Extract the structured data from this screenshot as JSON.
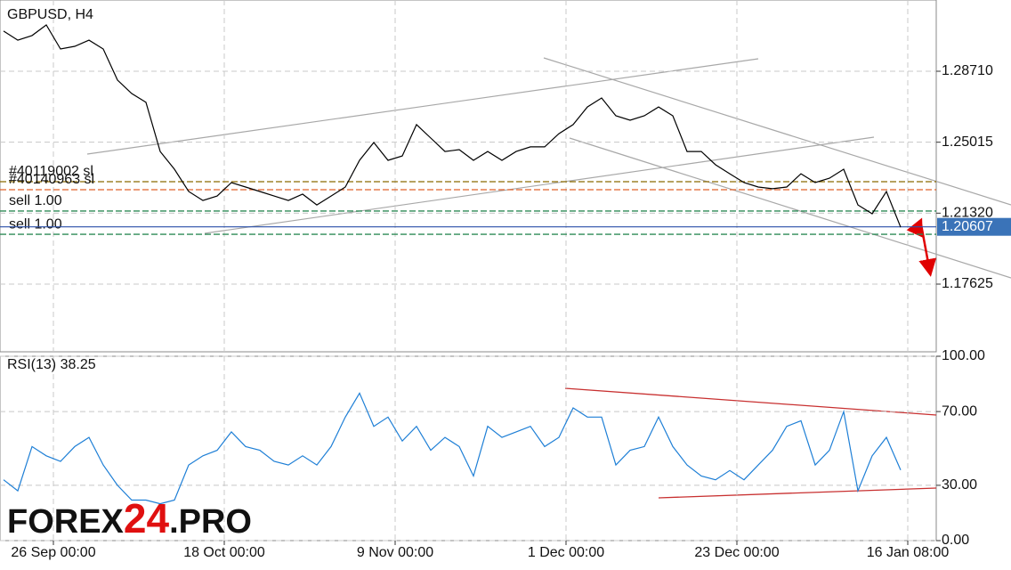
{
  "chart_data": [
    {
      "type": "line",
      "title": "GBPUSD, H4",
      "x": [
        0,
        1,
        2,
        3,
        4,
        5,
        6,
        7,
        8,
        9,
        10,
        11,
        12,
        13,
        14,
        15,
        16,
        17,
        18,
        19,
        20,
        21,
        22,
        23,
        24,
        25,
        26,
        27,
        28,
        29,
        30,
        31,
        32,
        33,
        34,
        35,
        36,
        37,
        38,
        39,
        40,
        41,
        42,
        43,
        44,
        45,
        46,
        47,
        48,
        49,
        50,
        51,
        52,
        53,
        54,
        55,
        56,
        57,
        58,
        59,
        60,
        61,
        62,
        63
      ],
      "values": [
        1.308,
        1.3033,
        1.3057,
        1.3112,
        1.2987,
        1.3001,
        1.3033,
        1.2987,
        1.2825,
        1.2755,
        1.2709,
        1.2453,
        1.2361,
        1.2245,
        1.2198,
        1.2221,
        1.2291,
        1.2268,
        1.2245,
        1.2221,
        1.2198,
        1.2231,
        1.2175,
        1.2221,
        1.2268,
        1.2407,
        1.25,
        1.2407,
        1.243,
        1.2593,
        1.2523,
        1.2453,
        1.2463,
        1.2407,
        1.2453,
        1.2407,
        1.2453,
        1.2477,
        1.2477,
        1.2546,
        1.2593,
        1.2685,
        1.2732,
        1.2639,
        1.2616,
        1.2639,
        1.2685,
        1.2639,
        1.2453,
        1.2453,
        1.2384,
        1.2337,
        1.2291,
        1.2268,
        1.2259,
        1.2268,
        1.2337,
        1.2291,
        1.2314,
        1.2361,
        1.2175,
        1.2129,
        1.2245,
        1.2059
      ],
      "color": "#000000",
      "xlim": [
        0,
        65.5
      ],
      "ylim": [
        1.141,
        1.3242
      ],
      "yticks": [
        {
          "value": 1.2871,
          "label": "1.28710"
        },
        {
          "value": 1.25015,
          "label": "1.25015"
        },
        {
          "value": 1.2132,
          "label": "1.21320"
        },
        {
          "value": 1.17625,
          "label": "1.17625"
        }
      ],
      "grid": true,
      "last_price": 1.20607,
      "levels": [
        {
          "label": "#40119002 sl",
          "value": 1.2296,
          "color": "#8b6a00"
        },
        {
          "label": "#40140963 sl",
          "value": 1.2254,
          "color": "#e0602a"
        },
        {
          "label": "sell 1.00",
          "value": 1.2143,
          "color": "#2e8b57"
        },
        {
          "label": "sell 1.00",
          "value": 1.2022,
          "color": "#2e8b57"
        }
      ]
    },
    {
      "type": "line",
      "title": "RSI(13) 38.25",
      "x": [
        0,
        1,
        2,
        3,
        4,
        5,
        6,
        7,
        8,
        9,
        10,
        11,
        12,
        13,
        14,
        15,
        16,
        17,
        18,
        19,
        20,
        21,
        22,
        23,
        24,
        25,
        26,
        27,
        28,
        29,
        30,
        31,
        32,
        33,
        34,
        35,
        36,
        37,
        38,
        39,
        40,
        41,
        42,
        43,
        44,
        45,
        46,
        47,
        48,
        49,
        50,
        51,
        52,
        53,
        54,
        55,
        56,
        57,
        58,
        59,
        60,
        61,
        62,
        63
      ],
      "values": [
        33,
        27,
        51,
        46,
        43,
        51,
        56,
        41,
        30,
        22,
        22,
        20,
        22,
        41,
        46,
        49,
        59,
        51,
        49,
        43,
        41,
        46,
        41,
        51,
        67,
        80,
        62,
        67,
        54,
        62,
        49,
        56,
        51,
        35,
        62,
        56,
        59,
        62,
        51,
        56,
        72,
        67,
        67,
        41,
        49,
        51,
        67,
        51,
        41,
        35,
        33,
        38,
        33,
        41,
        49,
        62,
        65,
        41,
        49,
        70,
        27,
        46,
        56,
        38.25
      ],
      "color": "#1e7fd6",
      "xlim": [
        0,
        65.5
      ],
      "ylim": [
        0,
        100
      ],
      "yticks": [
        {
          "value": 100,
          "label": "100.00"
        },
        {
          "value": 70,
          "label": "70.00"
        },
        {
          "value": 30,
          "label": "30.00"
        },
        {
          "value": 0,
          "label": "0.00"
        }
      ],
      "xticks": [
        {
          "value": 3.5,
          "label": "26 Sep 00:00"
        },
        {
          "value": 15.5,
          "label": "18 Oct 00:00"
        },
        {
          "value": 27.5,
          "label": "9 Nov 00:00"
        },
        {
          "value": 39.5,
          "label": "1 Dec 00:00"
        },
        {
          "value": 51.5,
          "label": "23 Dec 00:00"
        },
        {
          "value": 63.5,
          "label": "16 Jan 08:00"
        }
      ],
      "grid": true
    }
  ],
  "watermark": {
    "left": "FOREX",
    "number": "24",
    "right": ".PRO"
  }
}
